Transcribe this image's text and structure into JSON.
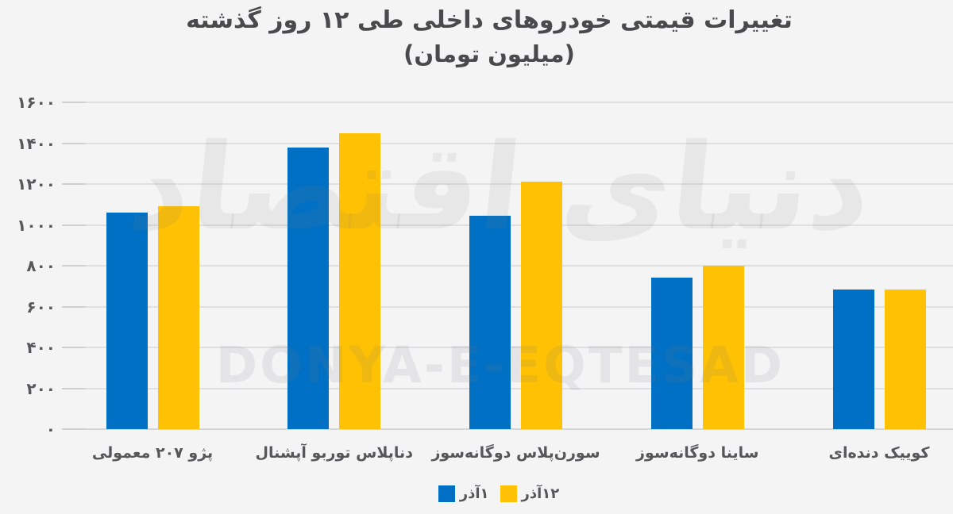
{
  "title": {
    "line1": "تغییرات قیمتی خودروهای داخلی طی ۱۲ روز گذشته",
    "line2": "(میلیون تومان)"
  },
  "chart_data": {
    "type": "bar",
    "direction": "rtl",
    "title": "تغییرات قیمتی خودروهای داخلی طی ۱۲ روز گذشته (میلیون تومان)",
    "unit": "میلیون تومان",
    "categories": [
      "پژو ۲۰۷ معمولی",
      "دناپلاس توربو آپشنال",
      "سورن‌پلاس دوگانه‌سوز",
      "ساینا دوگانه‌سوز",
      "کوییک دنده‌ای"
    ],
    "series": [
      {
        "name": "۱آذر",
        "color": "#0070C4",
        "values": [
          1060,
          1380,
          1045,
          740,
          685
        ]
      },
      {
        "name": "۱۲آذر",
        "color": "#FFC103",
        "values": [
          1090,
          1450,
          1210,
          800,
          685
        ]
      }
    ],
    "ylim": [
      0,
      1600
    ],
    "ytick_step": 200,
    "ytick_labels": [
      "۰",
      "۲۰۰",
      "۴۰۰",
      "۶۰۰",
      "۸۰۰",
      "۱۰۰۰",
      "۱۲۰۰",
      "۱۴۰۰",
      "۱۶۰۰"
    ],
    "grid": true,
    "legend_position": "bottom"
  },
  "watermark": {
    "persian": "دنیای اقتصاد",
    "latin": "DONYA-E-EQTESAD"
  },
  "colors": {
    "background": "#f4f4f5",
    "gridline": "#dfdfe1",
    "axis_text": "#57575a",
    "title_text": "#4a4a4c",
    "series1_blue": "#0070C4",
    "series2_yellow": "#FFC103"
  }
}
